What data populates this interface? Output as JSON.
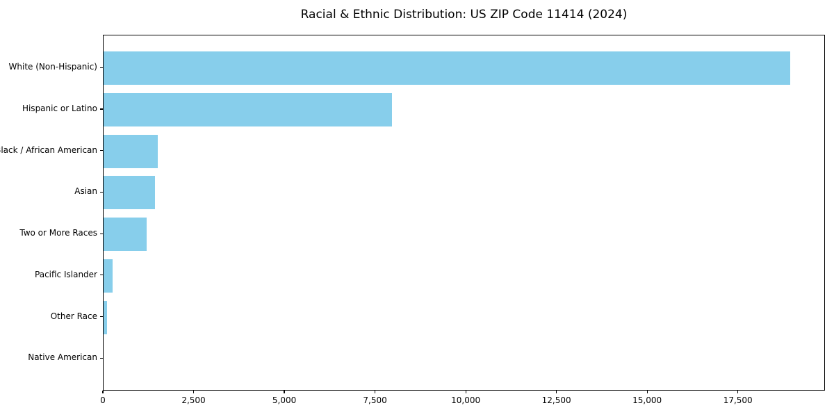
{
  "chart_data": {
    "type": "bar",
    "orientation": "horizontal",
    "title": "Racial & Ethnic Distribution: US ZIP Code 11414 (2024)",
    "categories": [
      "White (Non-Hispanic)",
      "Hispanic or Latino",
      "Black / African American",
      "Asian",
      "Two or More Races",
      "Pacific Islander",
      "Other Race",
      "Native American"
    ],
    "values": [
      18930,
      7940,
      1490,
      1420,
      1180,
      250,
      100,
      0
    ],
    "xlabel": "",
    "ylabel": "",
    "xlim": [
      0,
      19900
    ],
    "xticks": [
      0,
      2500,
      5000,
      7500,
      10000,
      12500,
      15000,
      17500
    ],
    "bar_color": "#87CEEB",
    "text_color": "#000000",
    "grid": false,
    "legend": null,
    "background": "#ffffff"
  }
}
